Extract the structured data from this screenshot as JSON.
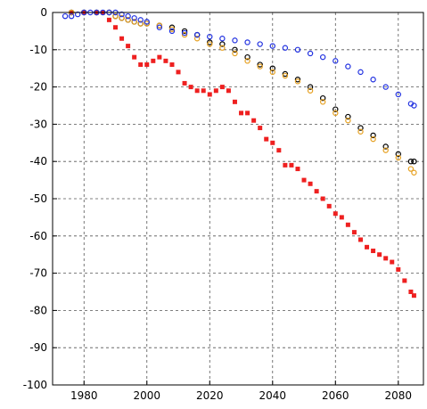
{
  "chart_data": {
    "type": "scatter",
    "title": "",
    "xlabel": "",
    "ylabel": "",
    "xlim": [
      1970,
      2088
    ],
    "ylim": [
      -100,
      0
    ],
    "xticks": [
      1980,
      2000,
      2020,
      2040,
      2060,
      2080
    ],
    "yticks": [
      0,
      -10,
      -20,
      -30,
      -40,
      -50,
      -60,
      -70,
      -80,
      -90,
      -100
    ],
    "grid": true,
    "series": [
      {
        "color": "#ee2020",
        "marker": "filled-square",
        "x": [
          1976,
          1980,
          1984,
          1986,
          1988,
          1990,
          1992,
          1994,
          1996,
          1998,
          2000,
          2002,
          2004,
          2006,
          2008,
          2010,
          2012,
          2014,
          2016,
          2018,
          2020,
          2022,
          2024,
          2026,
          2028,
          2030,
          2032,
          2034,
          2036,
          2038,
          2040,
          2042,
          2044,
          2046,
          2048,
          2050,
          2052,
          2054,
          2056,
          2058,
          2060,
          2062,
          2064,
          2066,
          2068,
          2070,
          2072,
          2074,
          2076,
          2078,
          2080,
          2082,
          2084,
          2085
        ],
        "y": [
          0,
          0,
          0,
          0,
          -2,
          -4,
          -7,
          -9,
          -12,
          -14,
          -14,
          -13,
          -12,
          -13,
          -14,
          -16,
          -19,
          -20,
          -21,
          -21,
          -22,
          -21,
          -20,
          -21,
          -24,
          -27,
          -27,
          -29,
          -31,
          -34,
          -35,
          -37,
          -41,
          -41,
          -42,
          -45,
          -46,
          -48,
          -50,
          -52,
          -54,
          -55,
          -57,
          -59,
          -61,
          -63,
          -64,
          -65,
          -66,
          -67,
          -69,
          -72,
          -75,
          -76
        ]
      },
      {
        "color": "#000000",
        "marker": "open-circle",
        "x": [
          1976,
          1980,
          1984,
          1988,
          1990,
          1992,
          1994,
          1996,
          1998,
          2000,
          2004,
          2008,
          2012,
          2016,
          2020,
          2024,
          2028,
          2032,
          2036,
          2040,
          2044,
          2048,
          2052,
          2056,
          2060,
          2064,
          2068,
          2072,
          2076,
          2080,
          2084,
          2085
        ],
        "y": [
          0,
          0,
          0,
          0,
          -1,
          -1.5,
          -2,
          -2.5,
          -3,
          -3,
          -3.5,
          -4,
          -5,
          -6,
          -8,
          -8.5,
          -10,
          -12,
          -14,
          -15,
          -16.5,
          -18,
          -20,
          -23,
          -26,
          -28,
          -31,
          -33,
          -36,
          -38,
          -40,
          -40
        ]
      },
      {
        "color": "#e6a020",
        "marker": "open-circle",
        "x": [
          1976,
          1980,
          1984,
          1988,
          1990,
          1992,
          1994,
          1996,
          1998,
          2000,
          2004,
          2008,
          2012,
          2016,
          2020,
          2024,
          2028,
          2032,
          2036,
          2040,
          2044,
          2048,
          2052,
          2056,
          2060,
          2064,
          2068,
          2072,
          2076,
          2080,
          2084,
          2085
        ],
        "y": [
          0,
          0,
          0,
          0,
          -1,
          -1.5,
          -2,
          -2.5,
          -3,
          -3,
          -3.5,
          -4.5,
          -6,
          -7,
          -8.5,
          -9.5,
          -11,
          -13,
          -14.5,
          -16,
          -17,
          -18.5,
          -21,
          -24,
          -27,
          -29,
          -32,
          -34,
          -37,
          -39,
          -42,
          -43
        ]
      },
      {
        "color": "#2030e0",
        "marker": "open-circle",
        "x": [
          1974,
          1976,
          1978,
          1980,
          1982,
          1984,
          1986,
          1988,
          1990,
          1992,
          1994,
          1996,
          1998,
          2000,
          2004,
          2008,
          2012,
          2016,
          2020,
          2024,
          2028,
          2032,
          2036,
          2040,
          2044,
          2048,
          2052,
          2056,
          2060,
          2064,
          2068,
          2072,
          2076,
          2080,
          2084,
          2085
        ],
        "y": [
          -1,
          -1,
          -0.5,
          0,
          0,
          0,
          0,
          0,
          0,
          -0.5,
          -1,
          -1.5,
          -2,
          -2.5,
          -4,
          -5,
          -5.5,
          -6,
          -6.5,
          -7,
          -7.5,
          -8,
          -8.5,
          -9,
          -9.5,
          -10,
          -11,
          -12,
          -13,
          -14.5,
          -16,
          -18,
          -20,
          -22,
          -24.5,
          -25
        ]
      }
    ]
  }
}
